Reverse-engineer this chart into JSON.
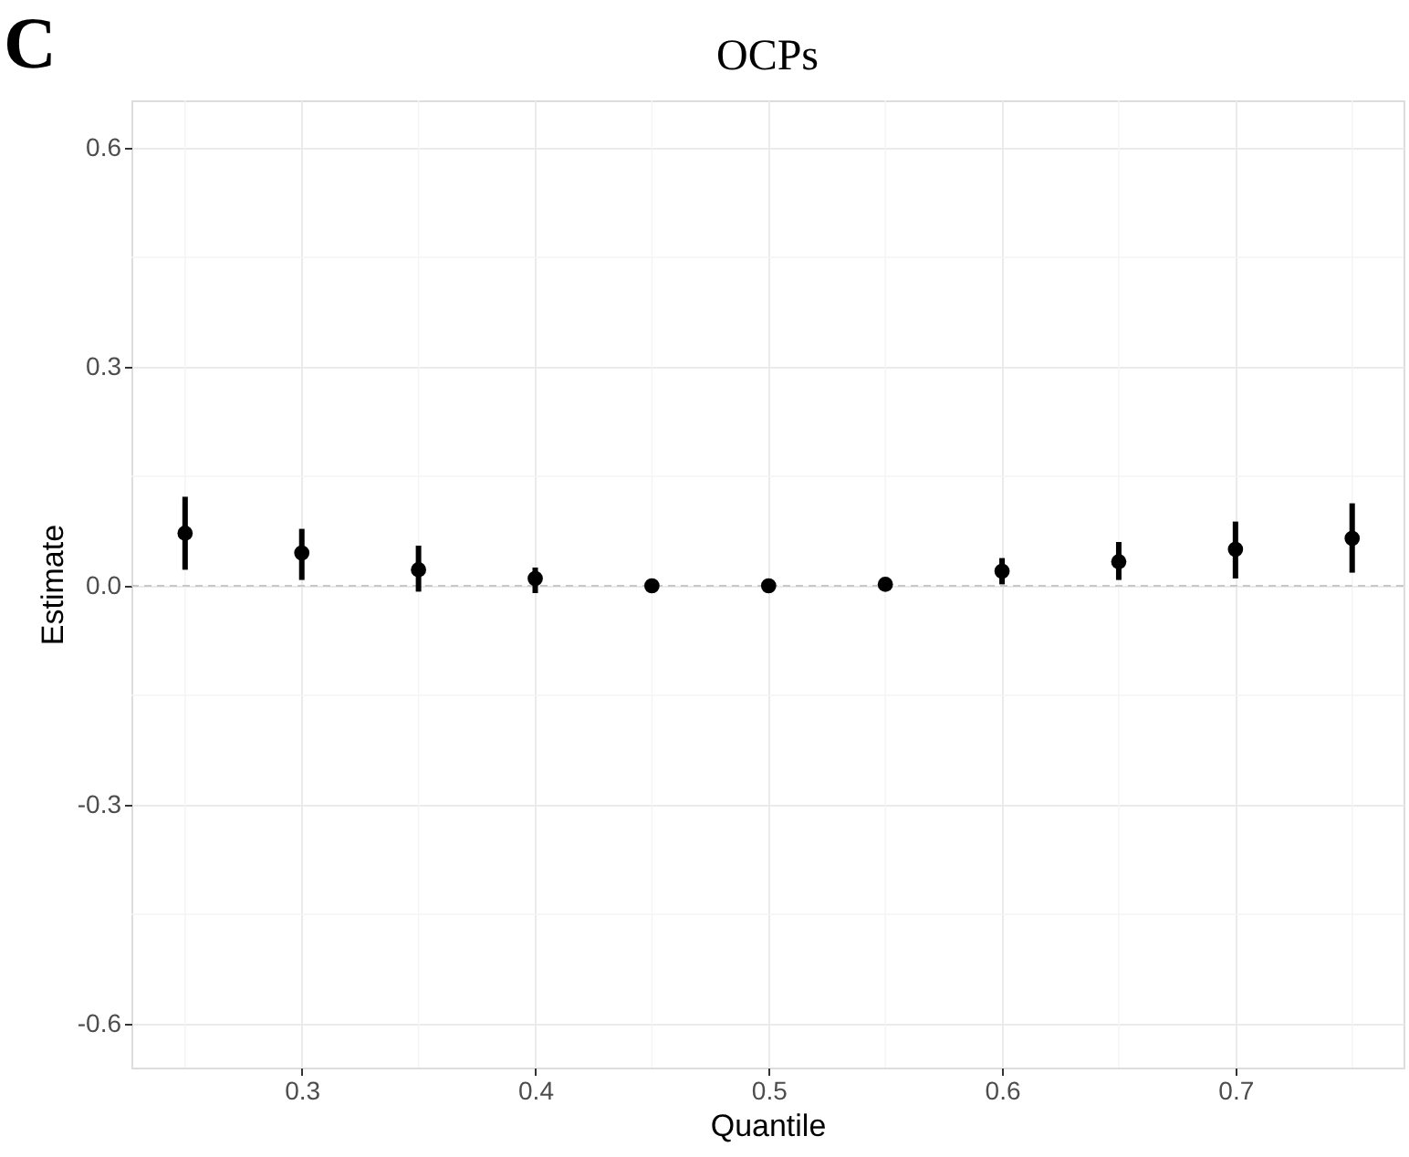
{
  "chart_data": {
    "type": "scatter",
    "title": "OCPs",
    "xlabel": "Quantile",
    "ylabel": "Estimate",
    "annotations": [
      "C"
    ],
    "x": [
      0.25,
      0.3,
      0.35,
      0.4,
      0.45,
      0.5,
      0.55,
      0.6,
      0.65,
      0.7,
      0.75
    ],
    "series": [
      {
        "color": "#000000",
        "values": [
          0.072,
          0.045,
          0.022,
          0.01,
          0.0,
          0.0,
          0.002,
          0.02,
          0.033,
          0.05,
          0.065
        ],
        "errors": [
          [
            0.022,
            0.122
          ],
          [
            0.008,
            0.078
          ],
          [
            -0.008,
            0.055
          ],
          [
            -0.01,
            0.025
          ],
          null,
          null,
          null,
          [
            0.002,
            0.038
          ],
          [
            0.008,
            0.06
          ],
          [
            0.01,
            0.088
          ],
          [
            0.018,
            0.113
          ]
        ]
      }
    ],
    "xlim": [
      0.227,
      0.772
    ],
    "xticks": [
      0.3,
      0.4,
      0.5,
      0.6,
      0.7
    ],
    "ylim": [
      -0.66,
      0.665
    ],
    "yticks": [
      -0.6,
      -0.3,
      {
        "value": 0,
        "label": "0.0"
      },
      0.3,
      0.6
    ],
    "ref_lines": [
      {
        "axis": "y",
        "value": 0.0,
        "color": "#c8c8c8",
        "line_style": "dashed"
      }
    ],
    "grid": true,
    "marker": "circle"
  }
}
